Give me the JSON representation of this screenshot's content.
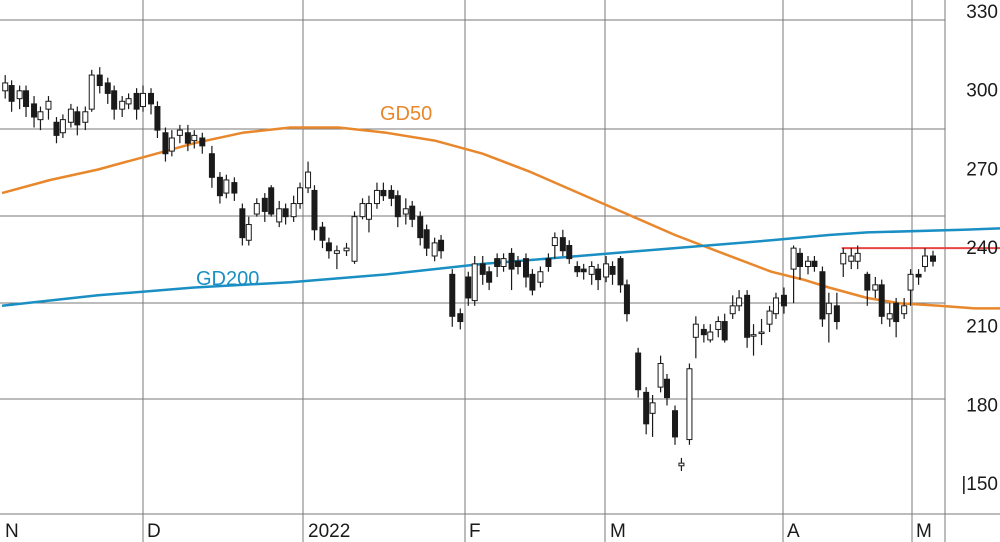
{
  "chart_data": {
    "type": "candlestick",
    "grid": true,
    "y_axis": {
      "position": "right",
      "range": [
        150,
        330
      ],
      "ticks": [
        330,
        300,
        270,
        240,
        210,
        180,
        150
      ],
      "tick_labels": [
        "330",
        "300",
        "270",
        "240",
        "210",
        "180",
        "|150"
      ]
    },
    "x_axis": {
      "tick_labels": [
        "N",
        "D",
        "2022",
        "F",
        "M",
        "A",
        "M"
      ]
    },
    "annotations": [
      {
        "text": "GD50",
        "color": "#e8872b"
      },
      {
        "text": "GD200",
        "color": "#1a8fc4"
      }
    ],
    "series": [
      {
        "name": "GD50",
        "color": "#e8872b",
        "values": [
          [
            0,
            264
          ],
          [
            30,
            269
          ],
          [
            60,
            273
          ],
          [
            90,
            278
          ],
          [
            120,
            283
          ],
          [
            150,
            287
          ],
          [
            180,
            289
          ],
          [
            210,
            289
          ],
          [
            240,
            287
          ],
          [
            270,
            284
          ],
          [
            300,
            279
          ],
          [
            330,
            272
          ],
          [
            360,
            264
          ],
          [
            390,
            256
          ],
          [
            420,
            248
          ],
          [
            450,
            241
          ],
          [
            480,
            234
          ],
          [
            500,
            231
          ],
          [
            516,
            228
          ],
          [
            540,
            224
          ],
          [
            560,
            222
          ],
          [
            585,
            221
          ],
          [
            607,
            220
          ],
          [
            640,
            220
          ]
        ]
      },
      {
        "name": "GD200",
        "color": "#1a8fc4",
        "values": [
          [
            0,
            221
          ],
          [
            60,
            225
          ],
          [
            120,
            228
          ],
          [
            180,
            230
          ],
          [
            240,
            233
          ],
          [
            300,
            237
          ],
          [
            360,
            240
          ],
          [
            420,
            243
          ],
          [
            480,
            246
          ],
          [
            516,
            248
          ],
          [
            540,
            249
          ],
          [
            600,
            250
          ],
          [
            640,
            251
          ]
        ]
      },
      {
        "name": "",
        "color": "#e84545",
        "values": [
          [
            524,
            243
          ],
          [
            640,
            243
          ]
        ]
      }
    ],
    "candles": [
      {
        "x": 2,
        "o": 303,
        "c": 306,
        "h": 309,
        "l": 300
      },
      {
        "x": 6,
        "o": 305,
        "c": 299,
        "h": 307,
        "l": 295
      },
      {
        "x": 11,
        "o": 300,
        "c": 303,
        "h": 305,
        "l": 296
      },
      {
        "x": 15,
        "o": 303,
        "c": 297,
        "h": 305,
        "l": 293
      },
      {
        "x": 20,
        "o": 298,
        "c": 293,
        "h": 301,
        "l": 289
      },
      {
        "x": 24,
        "o": 292,
        "c": 295,
        "h": 297,
        "l": 288
      },
      {
        "x": 29,
        "o": 296,
        "c": 299,
        "h": 301,
        "l": 292
      },
      {
        "x": 34,
        "o": 291,
        "c": 286,
        "h": 293,
        "l": 283
      },
      {
        "x": 38,
        "o": 287,
        "c": 292,
        "h": 294,
        "l": 285
      },
      {
        "x": 43,
        "o": 291,
        "c": 296,
        "h": 298,
        "l": 289
      },
      {
        "x": 47,
        "o": 295,
        "c": 290,
        "h": 297,
        "l": 286
      },
      {
        "x": 52,
        "o": 291,
        "c": 295,
        "h": 297,
        "l": 288
      },
      {
        "x": 56,
        "o": 296,
        "c": 309,
        "h": 311,
        "l": 295
      },
      {
        "x": 61,
        "o": 309,
        "c": 305,
        "h": 312,
        "l": 302
      },
      {
        "x": 66,
        "o": 306,
        "c": 302,
        "h": 308,
        "l": 298
      },
      {
        "x": 70,
        "o": 303,
        "c": 296,
        "h": 305,
        "l": 292
      },
      {
        "x": 75,
        "o": 296,
        "c": 299,
        "h": 301,
        "l": 293
      },
      {
        "x": 79,
        "o": 298,
        "c": 300,
        "h": 302,
        "l": 296
      },
      {
        "x": 84,
        "o": 302,
        "c": 296,
        "h": 304,
        "l": 292
      },
      {
        "x": 88,
        "o": 297,
        "c": 302,
        "h": 305,
        "l": 295
      },
      {
        "x": 93,
        "o": 302,
        "c": 298,
        "h": 304,
        "l": 294
      },
      {
        "x": 97,
        "o": 297,
        "c": 288,
        "h": 299,
        "l": 285
      },
      {
        "x": 102,
        "o": 287,
        "c": 279,
        "h": 289,
        "l": 276
      },
      {
        "x": 106,
        "o": 280,
        "c": 285,
        "h": 288,
        "l": 278
      },
      {
        "x": 111,
        "o": 286,
        "c": 288,
        "h": 290,
        "l": 283
      },
      {
        "x": 116,
        "o": 287,
        "c": 283,
        "h": 290,
        "l": 280
      },
      {
        "x": 120,
        "o": 284,
        "c": 286,
        "h": 288,
        "l": 281
      },
      {
        "x": 125,
        "o": 285,
        "c": 282,
        "h": 287,
        "l": 279
      },
      {
        "x": 131,
        "o": 279,
        "c": 270,
        "h": 282,
        "l": 266
      },
      {
        "x": 136,
        "o": 270,
        "c": 263,
        "h": 272,
        "l": 260
      },
      {
        "x": 140,
        "o": 264,
        "c": 269,
        "h": 271,
        "l": 262
      },
      {
        "x": 145,
        "o": 268,
        "c": 264,
        "h": 270,
        "l": 261
      },
      {
        "x": 150,
        "o": 258,
        "c": 247,
        "h": 260,
        "l": 244
      },
      {
        "x": 154,
        "o": 246,
        "c": 252,
        "h": 255,
        "l": 244
      },
      {
        "x": 159,
        "o": 256,
        "c": 260,
        "h": 262,
        "l": 255
      },
      {
        "x": 164,
        "o": 262,
        "c": 257,
        "h": 264,
        "l": 253
      },
      {
        "x": 168,
        "o": 266,
        "c": 256,
        "h": 267,
        "l": 255
      },
      {
        "x": 173,
        "o": 253,
        "c": 258,
        "h": 261,
        "l": 251
      },
      {
        "x": 177,
        "o": 258,
        "c": 255,
        "h": 260,
        "l": 252
      },
      {
        "x": 182,
        "o": 255,
        "c": 260,
        "h": 263,
        "l": 253
      },
      {
        "x": 186,
        "o": 260,
        "c": 266,
        "h": 268,
        "l": 258
      },
      {
        "x": 191,
        "o": 266,
        "c": 272,
        "h": 276,
        "l": 264
      },
      {
        "x": 195,
        "o": 265,
        "c": 250,
        "h": 267,
        "l": 246
      },
      {
        "x": 200,
        "o": 251,
        "c": 246,
        "h": 253,
        "l": 243
      },
      {
        "x": 204,
        "o": 245,
        "c": 242,
        "h": 247,
        "l": 239
      },
      {
        "x": 209,
        "o": 241,
        "c": 242,
        "h": 244,
        "l": 235
      },
      {
        "x": 215,
        "o": 242,
        "c": 243,
        "h": 245,
        "l": 240
      },
      {
        "x": 220,
        "o": 238,
        "c": 255,
        "h": 257,
        "l": 237
      },
      {
        "x": 225,
        "o": 255,
        "c": 260,
        "h": 262,
        "l": 254
      },
      {
        "x": 229,
        "o": 254,
        "c": 260,
        "h": 263,
        "l": 249
      },
      {
        "x": 234,
        "o": 260,
        "c": 265,
        "h": 268,
        "l": 258
      },
      {
        "x": 238,
        "o": 265,
        "c": 263,
        "h": 268,
        "l": 261
      },
      {
        "x": 243,
        "o": 265,
        "c": 262,
        "h": 267,
        "l": 259
      },
      {
        "x": 247,
        "o": 263,
        "c": 255,
        "h": 265,
        "l": 251
      },
      {
        "x": 252,
        "o": 256,
        "c": 258,
        "h": 262,
        "l": 252
      },
      {
        "x": 256,
        "o": 259,
        "c": 254,
        "h": 261,
        "l": 251
      },
      {
        "x": 261,
        "o": 255,
        "c": 247,
        "h": 257,
        "l": 244
      },
      {
        "x": 265,
        "o": 250,
        "c": 243,
        "h": 252,
        "l": 240
      },
      {
        "x": 270,
        "o": 240,
        "c": 245,
        "h": 247,
        "l": 238
      },
      {
        "x": 274,
        "o": 246,
        "c": 242,
        "h": 248,
        "l": 239
      },
      {
        "x": 281,
        "o": 233,
        "c": 217,
        "h": 235,
        "l": 213
      },
      {
        "x": 286,
        "o": 218,
        "c": 215,
        "h": 220,
        "l": 212
      },
      {
        "x": 291,
        "o": 232,
        "c": 224,
        "h": 234,
        "l": 221
      },
      {
        "x": 295,
        "o": 223,
        "c": 237,
        "h": 240,
        "l": 221
      },
      {
        "x": 300,
        "o": 237,
        "c": 233,
        "h": 240,
        "l": 229
      },
      {
        "x": 304,
        "o": 234,
        "c": 230,
        "h": 236,
        "l": 227
      },
      {
        "x": 309,
        "o": 239,
        "c": 236,
        "h": 241,
        "l": 232
      },
      {
        "x": 313,
        "o": 236,
        "c": 239,
        "h": 241,
        "l": 234
      },
      {
        "x": 318,
        "o": 241,
        "c": 235,
        "h": 243,
        "l": 227
      },
      {
        "x": 322,
        "o": 238,
        "c": 236,
        "h": 240,
        "l": 233
      },
      {
        "x": 327,
        "o": 239,
        "c": 232,
        "h": 241,
        "l": 228
      },
      {
        "x": 331,
        "o": 233,
        "c": 227,
        "h": 235,
        "l": 225
      },
      {
        "x": 336,
        "o": 230,
        "c": 234,
        "h": 236,
        "l": 228
      },
      {
        "x": 341,
        "o": 239,
        "c": 236,
        "h": 241,
        "l": 234
      },
      {
        "x": 345,
        "o": 244,
        "c": 247,
        "h": 249,
        "l": 239
      },
      {
        "x": 350,
        "o": 247,
        "c": 242,
        "h": 250,
        "l": 240
      },
      {
        "x": 354,
        "o": 244,
        "c": 239,
        "h": 246,
        "l": 237
      },
      {
        "x": 359,
        "o": 236,
        "c": 234,
        "h": 238,
        "l": 232
      },
      {
        "x": 363,
        "o": 235,
        "c": 234,
        "h": 237,
        "l": 231
      },
      {
        "x": 368,
        "o": 233,
        "c": 236,
        "h": 238,
        "l": 229
      },
      {
        "x": 372,
        "o": 235,
        "c": 231,
        "h": 237,
        "l": 227
      },
      {
        "x": 377,
        "o": 232,
        "c": 237,
        "h": 240,
        "l": 230
      },
      {
        "x": 381,
        "o": 236,
        "c": 233,
        "h": 238,
        "l": 229
      },
      {
        "x": 386,
        "o": 239,
        "c": 229,
        "h": 240,
        "l": 226
      },
      {
        "x": 390,
        "o": 229,
        "c": 218,
        "h": 231,
        "l": 215
      },
      {
        "x": 397,
        "o": 203,
        "c": 189,
        "h": 205,
        "l": 186
      },
      {
        "x": 402,
        "o": 188,
        "c": 176,
        "h": 190,
        "l": 172
      },
      {
        "x": 406,
        "o": 180,
        "c": 184,
        "h": 187,
        "l": 171
      },
      {
        "x": 411,
        "o": 190,
        "c": 199,
        "h": 202,
        "l": 188
      },
      {
        "x": 415,
        "o": 193,
        "c": 186,
        "h": 195,
        "l": 183
      },
      {
        "x": 420,
        "o": 181,
        "c": 171,
        "h": 183,
        "l": 168
      },
      {
        "x": 424,
        "o": 160,
        "c": 161,
        "h": 163,
        "l": 158
      },
      {
        "x": 429,
        "o": 170,
        "c": 197,
        "h": 199,
        "l": 168
      },
      {
        "x": 433,
        "o": 209,
        "c": 214,
        "h": 217,
        "l": 201
      },
      {
        "x": 438,
        "o": 212,
        "c": 210,
        "h": 214,
        "l": 207
      },
      {
        "x": 442,
        "o": 208,
        "c": 211,
        "h": 214,
        "l": 207
      },
      {
        "x": 447,
        "o": 212,
        "c": 215,
        "h": 217,
        "l": 209
      },
      {
        "x": 451,
        "o": 215,
        "c": 208,
        "h": 218,
        "l": 207
      },
      {
        "x": 456,
        "o": 218,
        "c": 221,
        "h": 225,
        "l": 216
      },
      {
        "x": 460,
        "o": 221,
        "c": 224,
        "h": 227,
        "l": 219
      },
      {
        "x": 465,
        "o": 225,
        "c": 209,
        "h": 227,
        "l": 205
      },
      {
        "x": 469,
        "o": 210,
        "c": 210,
        "h": 214,
        "l": 202
      },
      {
        "x": 474,
        "o": 211,
        "c": 211,
        "h": 216,
        "l": 206
      },
      {
        "x": 479,
        "o": 214,
        "c": 219,
        "h": 221,
        "l": 211
      },
      {
        "x": 483,
        "o": 218,
        "c": 224,
        "h": 226,
        "l": 216
      },
      {
        "x": 488,
        "o": 225,
        "c": 221,
        "h": 228,
        "l": 218
      },
      {
        "x": 494,
        "o": 235,
        "c": 243,
        "h": 244,
        "l": 222
      },
      {
        "x": 498,
        "o": 241,
        "c": 236,
        "h": 243,
        "l": 231
      },
      {
        "x": 503,
        "o": 236,
        "c": 238,
        "h": 240,
        "l": 233
      },
      {
        "x": 507,
        "o": 238,
        "c": 236,
        "h": 240,
        "l": 234
      },
      {
        "x": 512,
        "o": 234,
        "c": 216,
        "h": 236,
        "l": 213
      },
      {
        "x": 516,
        "o": 218,
        "c": 222,
        "h": 226,
        "l": 207
      },
      {
        "x": 521,
        "o": 221,
        "c": 215,
        "h": 226,
        "l": 212
      },
      {
        "x": 525,
        "o": 237,
        "c": 241,
        "h": 243,
        "l": 232
      },
      {
        "x": 530,
        "o": 238,
        "c": 240,
        "h": 243,
        "l": 235
      },
      {
        "x": 534,
        "o": 238,
        "c": 241,
        "h": 244,
        "l": 235
      },
      {
        "x": 540,
        "o": 233,
        "c": 227,
        "h": 234,
        "l": 221
      },
      {
        "x": 545,
        "o": 227,
        "c": 229,
        "h": 232,
        "l": 224
      },
      {
        "x": 549,
        "o": 229,
        "c": 217,
        "h": 231,
        "l": 214
      },
      {
        "x": 554,
        "o": 216,
        "c": 218,
        "h": 222,
        "l": 213
      },
      {
        "x": 558,
        "o": 222,
        "c": 215,
        "h": 224,
        "l": 209
      },
      {
        "x": 563,
        "o": 218,
        "c": 221,
        "h": 224,
        "l": 216
      },
      {
        "x": 567,
        "o": 227,
        "c": 233,
        "h": 235,
        "l": 221
      },
      {
        "x": 572,
        "o": 233,
        "c": 232,
        "h": 235,
        "l": 229
      },
      {
        "x": 576,
        "o": 236,
        "c": 240,
        "h": 243,
        "l": 234
      },
      {
        "x": 581,
        "o": 240,
        "c": 238,
        "h": 242,
        "l": 236
      }
    ]
  }
}
